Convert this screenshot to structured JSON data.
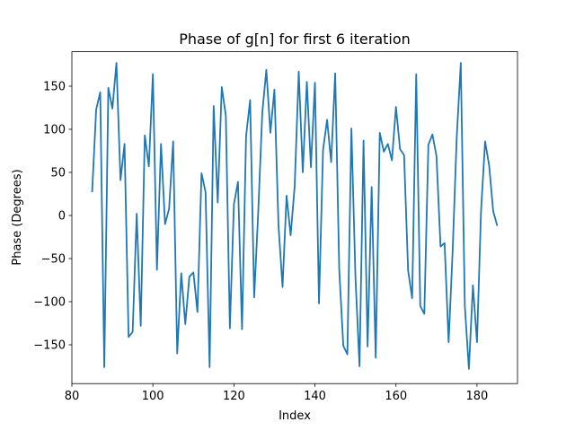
{
  "chart_data": {
    "type": "line",
    "title": "Phase of g[n] for first 6 iteration",
    "xlabel": "Index",
    "ylabel": "Phase (Degrees)",
    "xlim": [
      80,
      190
    ],
    "ylim": [
      -195,
      190
    ],
    "x_ticks": [
      80,
      100,
      120,
      140,
      160,
      180
    ],
    "y_ticks": [
      -150,
      -100,
      -50,
      0,
      50,
      100,
      150
    ],
    "x_tick_labels": [
      "80",
      "100",
      "120",
      "140",
      "160",
      "180"
    ],
    "y_tick_labels": [
      "−150",
      "−100",
      "−50",
      "0",
      "50",
      "100",
      "150"
    ],
    "grid": false,
    "series": [
      {
        "color": "#1f77b4",
        "x_start": 85,
        "x_step": 1,
        "values": [
          27,
          123,
          143,
          -176,
          148,
          124,
          177,
          41,
          83,
          -141,
          -135,
          2,
          -128,
          93,
          57,
          164,
          -63,
          83,
          -10,
          8,
          86,
          -160,
          -67,
          -126,
          -71,
          -66,
          -112,
          49,
          27,
          -176,
          127,
          15,
          149,
          116,
          -131,
          13,
          39,
          -132,
          92,
          134,
          -95,
          4,
          119,
          169,
          96,
          146,
          -11,
          -83,
          23,
          -23,
          34,
          167,
          50,
          155,
          56,
          154,
          -102,
          76,
          111,
          62,
          165,
          -63,
          -151,
          -161,
          101,
          -72,
          -175,
          87,
          -152,
          33,
          -165,
          96,
          74,
          83,
          64,
          126,
          77,
          70,
          -64,
          -96,
          164,
          -105,
          -114,
          82,
          94,
          69,
          -36,
          -32,
          -147,
          -40,
          91,
          177,
          -105,
          -178,
          -81,
          -147,
          5,
          86,
          58,
          5,
          -12
        ]
      }
    ]
  }
}
